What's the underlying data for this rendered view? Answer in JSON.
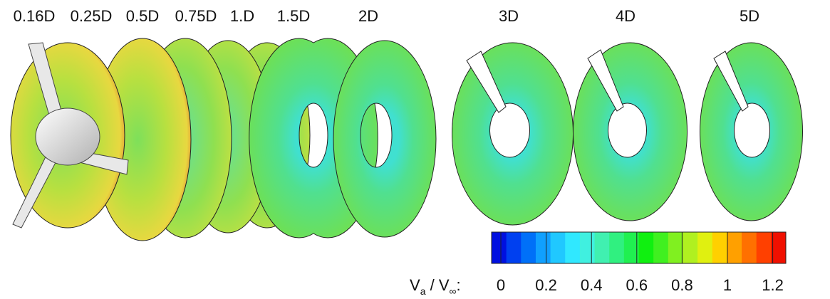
{
  "station_labels": [
    "0.16D",
    "0.25D",
    "0.5D",
    "0.75D",
    "1.D",
    "1.5D",
    "2D",
    "3D",
    "4D",
    "5D"
  ],
  "colorbar": {
    "title": {
      "v1": "V",
      "sub1": "a",
      "mid": " / V",
      "sub2": "∞",
      "end": ":"
    },
    "ticks": [
      0,
      0.2,
      0.4,
      0.6,
      0.8,
      1,
      1.2
    ]
  }
}
